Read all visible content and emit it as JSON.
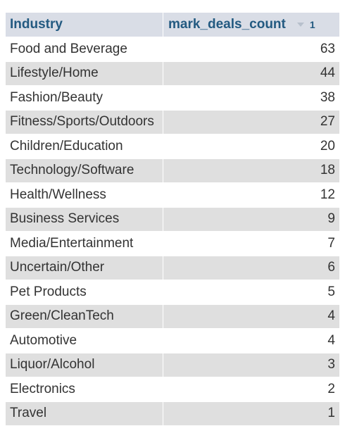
{
  "table": {
    "headers": {
      "industry": "Industry",
      "count": "mark_deals_count",
      "sort_order": "1"
    },
    "rows": [
      {
        "industry": "Food and Beverage",
        "count": "63"
      },
      {
        "industry": "Lifestyle/Home",
        "count": "44"
      },
      {
        "industry": "Fashion/Beauty",
        "count": "38"
      },
      {
        "industry": "Fitness/Sports/Outdoors",
        "count": "27"
      },
      {
        "industry": "Children/Education",
        "count": "20"
      },
      {
        "industry": "Technology/Software",
        "count": "18"
      },
      {
        "industry": "Health/Wellness",
        "count": "12"
      },
      {
        "industry": "Business Services",
        "count": "9"
      },
      {
        "industry": "Media/Entertainment",
        "count": "7"
      },
      {
        "industry": "Uncertain/Other",
        "count": "6"
      },
      {
        "industry": "Pet Products",
        "count": "5"
      },
      {
        "industry": "Green/CleanTech",
        "count": "4"
      },
      {
        "industry": "Automotive",
        "count": "4"
      },
      {
        "industry": "Liquor/Alcohol",
        "count": "3"
      },
      {
        "industry": "Electronics",
        "count": "2"
      },
      {
        "industry": "Travel",
        "count": "1"
      }
    ]
  },
  "colors": {
    "header_bg": "#d9dde6",
    "header_text": "#235a81",
    "row_alt_bg": "#dfdfdf",
    "row_bg": "#ffffff",
    "cell_text": "#333333"
  },
  "icons": {
    "sort": "sort-descending-icon"
  }
}
